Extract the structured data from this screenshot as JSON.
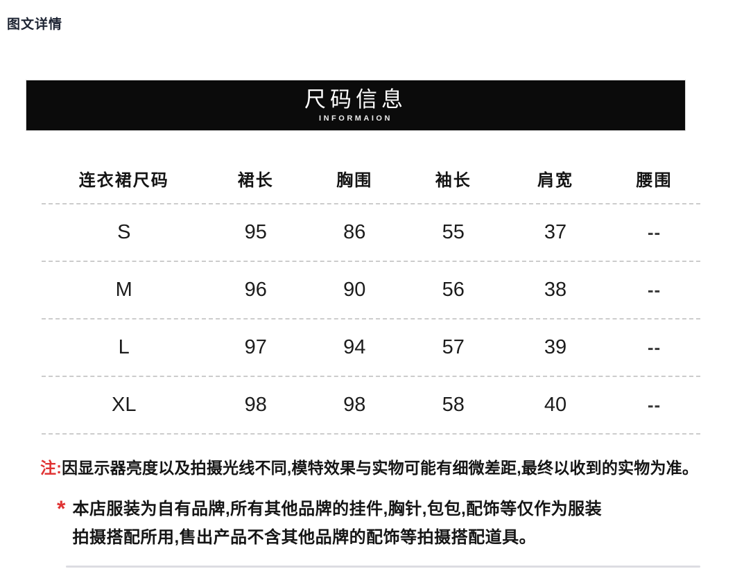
{
  "page": {
    "title": "图文详情"
  },
  "banner": {
    "title": "尺码信息",
    "subtitle": "INFORMAION",
    "bg_color": "#0b0b0b",
    "text_color": "#ffffff"
  },
  "size_table": {
    "columns": [
      "连衣裙尺码",
      "裙长",
      "胸围",
      "袖长",
      "肩宽",
      "腰围"
    ],
    "rows": [
      [
        "S",
        "95",
        "86",
        "55",
        "37",
        "--"
      ],
      [
        "M",
        "96",
        "90",
        "56",
        "38",
        "--"
      ],
      [
        "L",
        "97",
        "94",
        "57",
        "39",
        "--"
      ],
      [
        "XL",
        "98",
        "98",
        "58",
        "40",
        "--"
      ]
    ]
  },
  "notes": {
    "note1_prefix": "注:",
    "note1_text": "因显示器亮度以及拍摄光线不同,模特效果与实物可能有细微差距,最终以收到的实物为准。",
    "note2_marker": "*",
    "note2_line1": "本店服装为自有品牌,所有其他品牌的挂件,胸针,包包,配饰等仅作为服装",
    "note2_line2": "拍摄搭配所用,售出产品不含其他品牌的配饰等拍摄搭配道具。"
  },
  "colors": {
    "accent_red": "#e03434",
    "banner_black": "#0b0b0b",
    "dashed_divider": "#cccccc"
  }
}
